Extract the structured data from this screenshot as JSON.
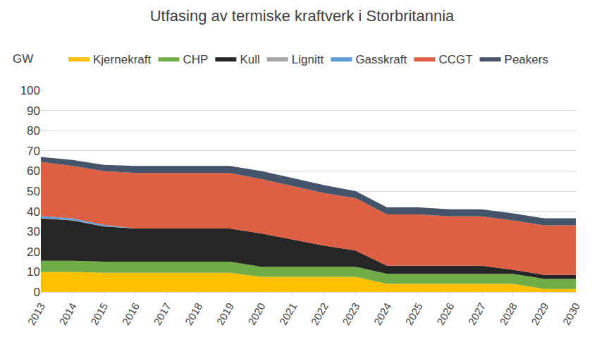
{
  "chart_data": {
    "type": "area",
    "title": "Utfasing av termiske kraftverk i Storbritannia",
    "y_label": "GW",
    "stacked": true,
    "grid": true,
    "legend": "top",
    "categories": [
      "2013",
      "2014",
      "2015",
      "2016",
      "2017",
      "2018",
      "2019",
      "2020",
      "2021",
      "2022",
      "2023",
      "2024",
      "2025",
      "2026",
      "2027",
      "2028",
      "2029",
      "2030"
    ],
    "ylim": [
      0,
      100
    ],
    "yticks": [
      0,
      10,
      20,
      30,
      40,
      50,
      60,
      70,
      80,
      90,
      100
    ],
    "series": [
      {
        "name": "Kjernekraft",
        "color": "#FFC000",
        "values": [
          10,
          10,
          9.5,
          9.5,
          9.5,
          9.5,
          9.5,
          7.5,
          7.5,
          7.5,
          7.5,
          4,
          4,
          4,
          4,
          4,
          1.5,
          1.5
        ]
      },
      {
        "name": "CHP",
        "color": "#70AD47",
        "values": [
          5.5,
          5.5,
          5.5,
          5.5,
          5.5,
          5.5,
          5.5,
          5,
          5,
          5,
          5,
          5,
          5,
          5,
          5,
          5,
          5,
          5
        ]
      },
      {
        "name": "Kull",
        "color": "#262626",
        "values": [
          21,
          20,
          17.5,
          16.5,
          16.5,
          16.5,
          16.5,
          16.5,
          13.5,
          10.5,
          8,
          4,
          4,
          4,
          4,
          2,
          2,
          2
        ]
      },
      {
        "name": "Lignitt",
        "color": "#A5A5A5",
        "values": [
          0.2,
          0.2,
          0.2,
          0,
          0,
          0,
          0,
          0,
          0,
          0,
          0,
          0,
          0,
          0,
          0,
          0,
          0,
          0
        ]
      },
      {
        "name": "Gasskraft",
        "color": "#5B9BD5",
        "values": [
          1,
          0.8,
          0.6,
          0,
          0,
          0,
          0,
          0,
          0,
          0,
          0,
          0,
          0,
          0,
          0,
          0,
          0,
          0
        ]
      },
      {
        "name": "CCGT",
        "color": "#DD5F44",
        "values": [
          26.8,
          26,
          26.7,
          27.5,
          27.5,
          27.5,
          27.5,
          27,
          26.5,
          26,
          26,
          25.5,
          25.5,
          24.5,
          24.5,
          24.5,
          24.5,
          24.5
        ]
      },
      {
        "name": "Peakers",
        "color": "#44546A",
        "values": [
          2.5,
          3,
          3,
          3.5,
          3.5,
          3.5,
          3.5,
          4,
          4,
          4,
          3.5,
          3.5,
          3.5,
          3.5,
          3.5,
          3.5,
          3.5,
          3.5
        ]
      }
    ]
  }
}
